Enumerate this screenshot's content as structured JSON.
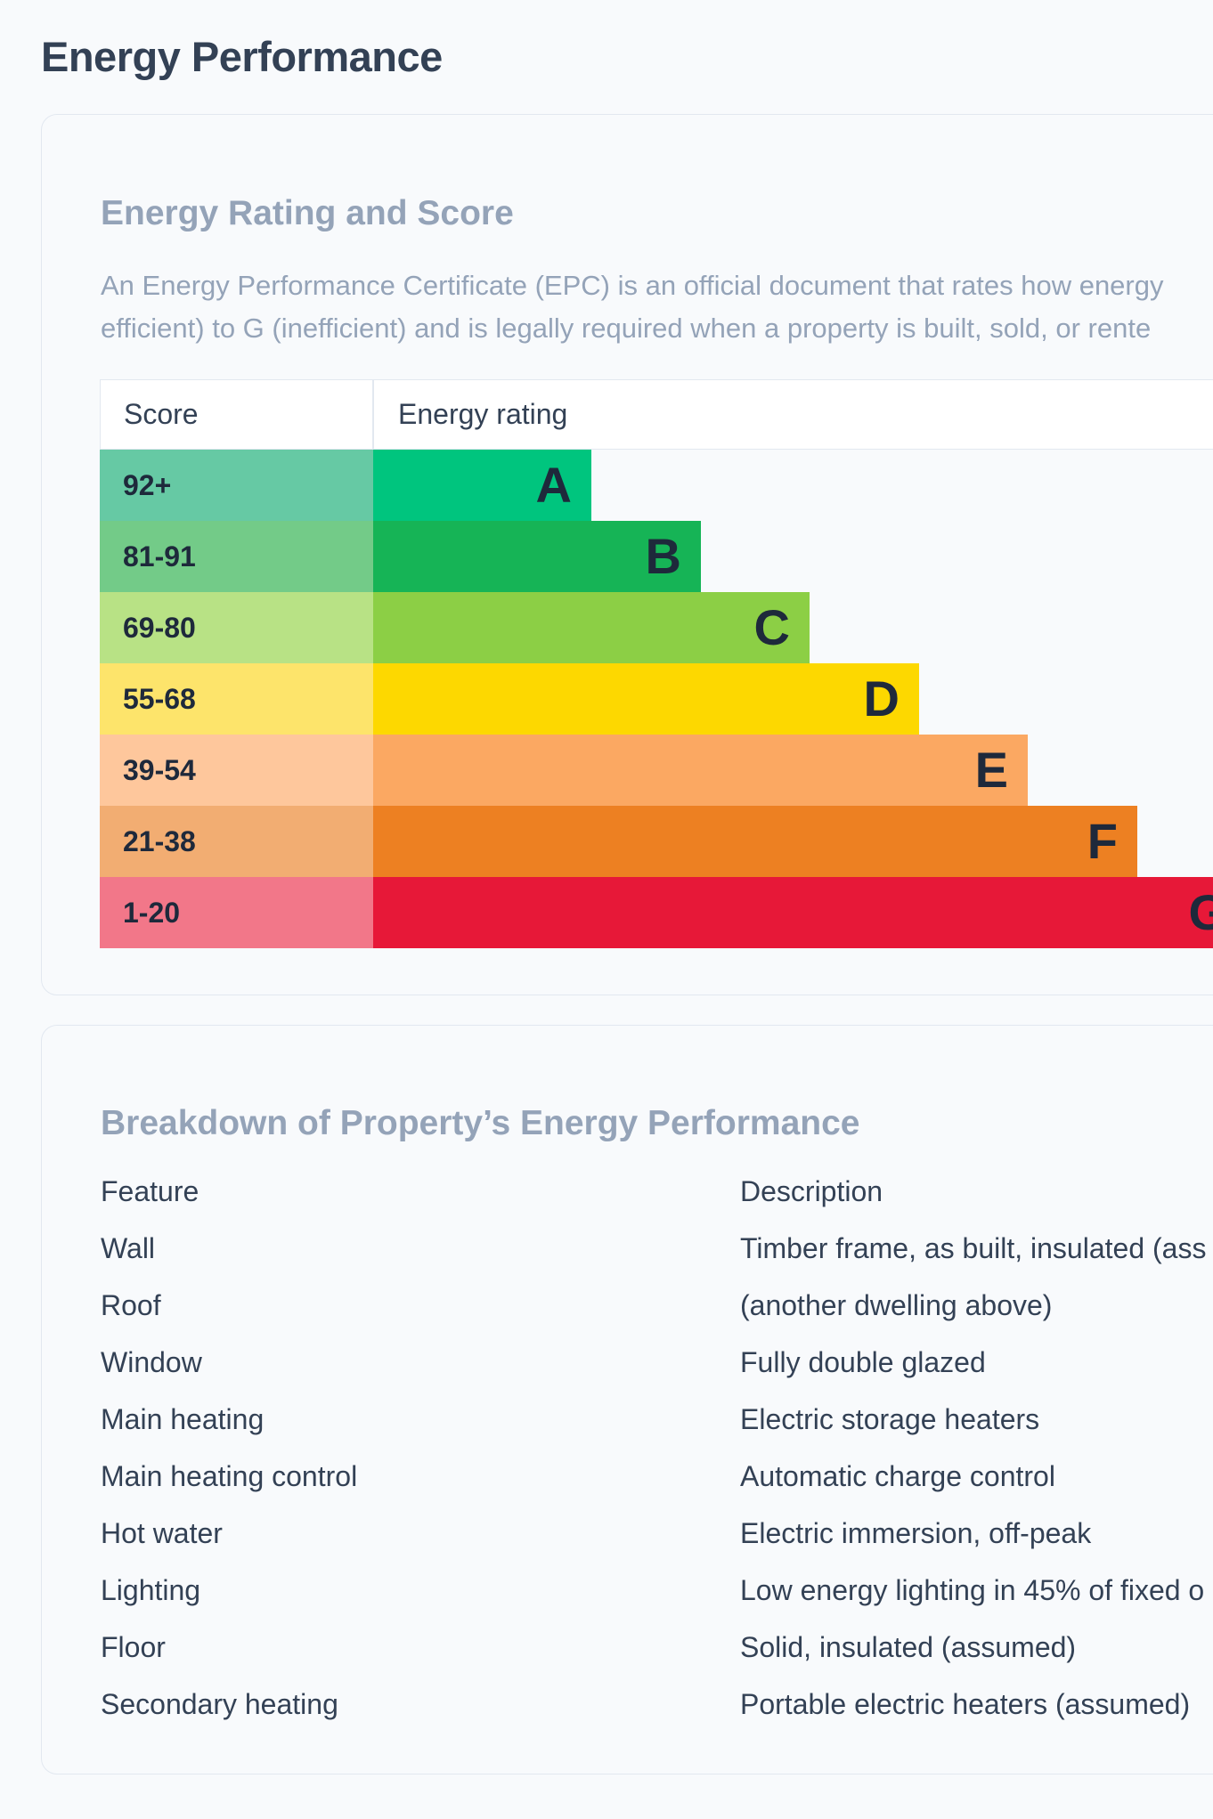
{
  "page": {
    "title": "Energy Performance"
  },
  "epc": {
    "title": "Energy Rating and Score",
    "description_line1": "An Energy Performance Certificate (EPC) is an official document that rates how energy",
    "description_line2": "efficient) to G (inefficient) and is legally required when a property is built, sold, or rente",
    "headers": {
      "score": "Score",
      "rating": "Energy rating"
    },
    "bands": [
      {
        "score": "92+",
        "letter": "A",
        "score_bg": "#66c9a4",
        "bar_color": "#00c57e",
        "bar_fraction": 0.18
      },
      {
        "score": "81-91",
        "letter": "B",
        "score_bg": "#73cb88",
        "bar_color": "#16b456",
        "bar_fraction": 0.27
      },
      {
        "score": "69-80",
        "letter": "C",
        "score_bg": "#b8e285",
        "bar_color": "#8ccf45",
        "bar_fraction": 0.36
      },
      {
        "score": "55-68",
        "letter": "D",
        "score_bg": "#fde46b",
        "bar_color": "#fdd800",
        "bar_fraction": 0.45
      },
      {
        "score": "39-54",
        "letter": "E",
        "score_bg": "#fec79c",
        "bar_color": "#fba862",
        "bar_fraction": 0.54
      },
      {
        "score": "21-38",
        "letter": "F",
        "score_bg": "#f2ad72",
        "bar_color": "#ed8022",
        "bar_fraction": 0.63
      },
      {
        "score": "1-20",
        "letter": "G",
        "score_bg": "#f27789",
        "bar_color": "#e71838",
        "bar_fraction": 0.72
      }
    ]
  },
  "breakdown": {
    "title": "Breakdown of Property’s Energy Performance",
    "headers": {
      "feature": "Feature",
      "description": "Description"
    },
    "rows": [
      {
        "feature": "Wall",
        "description": "Timber frame, as built, insulated (ass"
      },
      {
        "feature": "Roof",
        "description": "(another dwelling above)"
      },
      {
        "feature": "Window",
        "description": "Fully double glazed"
      },
      {
        "feature": "Main heating",
        "description": "Electric storage heaters"
      },
      {
        "feature": "Main heating control",
        "description": "Automatic charge control"
      },
      {
        "feature": "Hot water",
        "description": "Electric immersion, off-peak"
      },
      {
        "feature": "Lighting",
        "description": "Low energy lighting in 45% of fixed o"
      },
      {
        "feature": "Floor",
        "description": "Solid, insulated (assumed)"
      },
      {
        "feature": "Secondary heating",
        "description": "Portable electric heaters (assumed)"
      }
    ]
  }
}
